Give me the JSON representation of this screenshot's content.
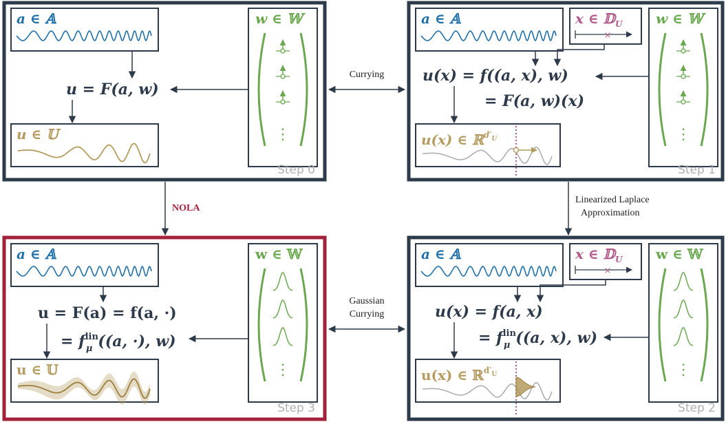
{
  "colors": {
    "frame": "#2c3a4a",
    "nola": "#a3213a",
    "blue": "#1f6fa8",
    "green": "#6aa84f",
    "gold": "#b49b5f",
    "pink": "#b05a8c",
    "gray": "#aaaaaa"
  },
  "steps": {
    "step0": "Step 0",
    "step1": "Step 1",
    "step2": "Step 2",
    "step3": "Step 3"
  },
  "edges": {
    "currying": "Currying",
    "nola": "NOLA",
    "lla_line1": "Linearized Laplace",
    "lla_line2": "Approximation",
    "gauss_line1": "Gaussian",
    "gauss_line2": "Currying"
  },
  "labels": {
    "a_in_A": "a ∈ 𝔸",
    "w_in_W": "w ∈ 𝕎",
    "x_in_DU": "x ∈ 𝔻",
    "u_in_U": "u ∈ 𝕌",
    "ux_in_R": "u(x) ∈ ℝ",
    "dots": "⋮"
  },
  "equations": {
    "step0": "u = F(a, w)",
    "step1_l1": "u(x) = f((a, x), w)",
    "step1_l2": "= F(a, w)(x)",
    "step2_l1": "u(x) = f(a, x)",
    "step2_l2": "= f",
    "step3_l1": "u = F(a) = f(a, ·)",
    "step3_l2": "= f"
  }
}
